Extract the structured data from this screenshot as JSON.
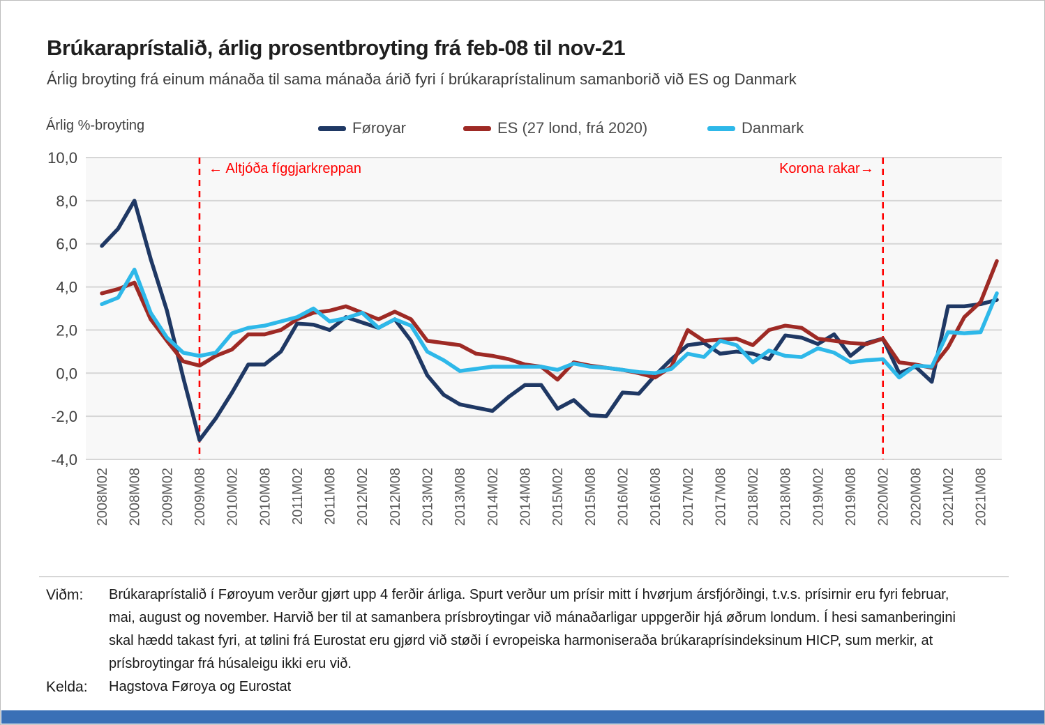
{
  "header": {
    "title": "Brúkaraprístalið, árlig prosentbroyting frá feb-08 til nov-21",
    "subtitle": "Árlig broyting frá einum mánaða til sama mánaða árið fyri í brúkaraprístalinum samanborið við ES og Danmark"
  },
  "chart_data": {
    "type": "line",
    "y_axis_label": "Árlig %-broyting",
    "ylim": [
      -4,
      10
    ],
    "ytick_labels": [
      "10,0",
      "8,0",
      "6,0",
      "4,0",
      "2,0",
      "0,0",
      "-2,0",
      "-4,0"
    ],
    "ytick_values": [
      10,
      8,
      6,
      4,
      2,
      0,
      -2,
      -4
    ],
    "grid": true,
    "legend_position": "top",
    "x": [
      "2008M02",
      "2008M05",
      "2008M08",
      "2008M11",
      "2009M02",
      "2009M05",
      "2009M08",
      "2009M11",
      "2010M02",
      "2010M05",
      "2010M08",
      "2010M11",
      "2011M02",
      "2011M05",
      "2011M08",
      "2011M11",
      "2012M02",
      "2012M05",
      "2012M08",
      "2012M11",
      "2013M02",
      "2013M05",
      "2013M08",
      "2013M11",
      "2014M02",
      "2014M05",
      "2014M08",
      "2014M11",
      "2015M02",
      "2015M05",
      "2015M08",
      "2015M11",
      "2016M02",
      "2016M05",
      "2016M08",
      "2016M11",
      "2017M02",
      "2017M05",
      "2017M08",
      "2017M11",
      "2018M02",
      "2018M05",
      "2018M08",
      "2018M11",
      "2019M02",
      "2019M05",
      "2019M08",
      "2019M11",
      "2020M02",
      "2020M05",
      "2020M08",
      "2020M11",
      "2021M02",
      "2021M05",
      "2021M08",
      "2021M11"
    ],
    "x_tick_labels": [
      "2008M02",
      "2008M08",
      "2009M02",
      "2009M08",
      "2010M02",
      "2010M08",
      "2011M02",
      "2011M08",
      "2012M02",
      "2012M08",
      "2013M02",
      "2013M08",
      "2014M02",
      "2014M08",
      "2015M02",
      "2015M08",
      "2016M02",
      "2016M08",
      "2017M02",
      "2017M08",
      "2018M02",
      "2018M08",
      "2019M02",
      "2019M08",
      "2020M02",
      "2020M08",
      "2021M02",
      "2021M08"
    ],
    "series": [
      {
        "name": "Føroyar",
        "color": "#1f3864",
        "values": [
          5.9,
          6.7,
          8.0,
          5.3,
          2.9,
          -0.2,
          -3.1,
          -2.1,
          -0.9,
          0.4,
          0.4,
          1.0,
          2.3,
          2.25,
          2.0,
          2.6,
          2.35,
          2.1,
          2.5,
          1.5,
          -0.1,
          -1.0,
          -1.45,
          -1.6,
          -1.75,
          -1.1,
          -0.55,
          -0.55,
          -1.65,
          -1.25,
          -1.95,
          -2.0,
          -0.9,
          -0.95,
          -0.1,
          0.65,
          1.3,
          1.4,
          0.9,
          1.0,
          0.9,
          0.65,
          1.75,
          1.65,
          1.35,
          1.8,
          0.8,
          1.4,
          1.6,
          0.0,
          0.3,
          -0.4,
          3.1,
          3.1,
          3.2,
          3.4
        ]
      },
      {
        "name": "ES (27 lond, frá 2020)",
        "color": "#9e2a25",
        "values": [
          3.7,
          3.9,
          4.2,
          2.5,
          1.5,
          0.55,
          0.35,
          0.8,
          1.1,
          1.8,
          1.8,
          2.0,
          2.5,
          2.8,
          2.9,
          3.1,
          2.8,
          2.5,
          2.85,
          2.5,
          1.5,
          1.4,
          1.3,
          0.9,
          0.8,
          0.65,
          0.4,
          0.3,
          -0.3,
          0.5,
          0.35,
          0.25,
          0.15,
          0.0,
          -0.2,
          0.3,
          2.0,
          1.5,
          1.55,
          1.6,
          1.3,
          2.0,
          2.2,
          2.1,
          1.6,
          1.5,
          1.4,
          1.35,
          1.6,
          0.5,
          0.4,
          0.25,
          1.2,
          2.6,
          3.3,
          5.2
        ]
      },
      {
        "name": "Danmark",
        "color": "#2eb8e9",
        "values": [
          3.2,
          3.5,
          4.8,
          2.8,
          1.65,
          0.95,
          0.8,
          0.95,
          1.85,
          2.1,
          2.2,
          2.4,
          2.6,
          3.0,
          2.4,
          2.55,
          2.8,
          2.1,
          2.5,
          2.2,
          1.0,
          0.6,
          0.1,
          0.2,
          0.3,
          0.3,
          0.3,
          0.3,
          0.15,
          0.45,
          0.3,
          0.25,
          0.15,
          0.05,
          0.0,
          0.2,
          0.9,
          0.75,
          1.5,
          1.3,
          0.5,
          1.05,
          0.8,
          0.75,
          1.15,
          0.95,
          0.5,
          0.6,
          0.65,
          -0.2,
          0.35,
          0.3,
          1.9,
          1.85,
          1.9,
          3.7
        ]
      }
    ],
    "annotations": [
      {
        "text": "← Altjóða fíggjarkreppan",
        "x": "2009M08",
        "label_side": "right"
      },
      {
        "text": "Korona rakar→",
        "x": "2020M02",
        "label_side": "left"
      }
    ],
    "annotation_color": "#ff0000"
  },
  "footer": {
    "vidm_label": "Viðm:",
    "vidm_lines": [
      "Brúkaraprístalið í Føroyum verður gjørt upp 4 ferðir árliga. Spurt verður um prísir mitt í hvørjum ársfjórðingi, t.v.s. prísirnir eru fyri februar,",
      "mai, august og november. Harvið ber til at samanbera prísbroytingar við mánaðarligar uppgerðir hjá øðrum londum. Í hesi samanberingini",
      "skal hædd takast fyri, at tølini frá Eurostat eru gjørd við støði í evropeiska harmoniseraða brúkaraprísindeksinum HICP, sum merkir, at",
      "prísbroytingar frá húsaleigu ikki eru við."
    ],
    "kelda_label": "Kelda:",
    "kelda_text": "Hagstova Føroya og Eurostat"
  },
  "colors": {
    "grid": "#d6d6d6",
    "plot_background": "#f8f8f8",
    "axis_text": "#595959",
    "bottom_bar": "#3a70b6"
  }
}
